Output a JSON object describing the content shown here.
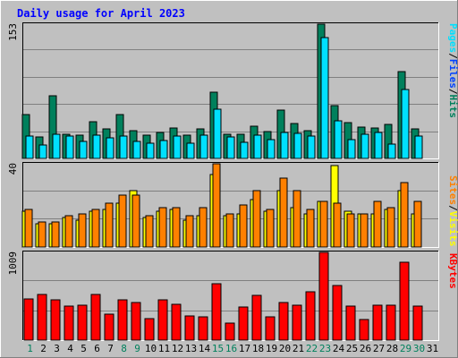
{
  "chart_data": [
    {
      "type": "bar",
      "title": "Daily usage for April 2023",
      "panel": "hits-files-pages",
      "ymax_label": "153",
      "ylim": [
        0,
        153
      ],
      "grid": true,
      "legend": [
        {
          "name": "Hits",
          "color": "#00805c"
        },
        {
          "name": "Files",
          "color": "#0040ff"
        },
        {
          "name": "Pages",
          "color": "#00e0ff"
        }
      ],
      "categories": [
        "1",
        "2",
        "3",
        "4",
        "5",
        "6",
        "7",
        "8",
        "9",
        "10",
        "11",
        "12",
        "13",
        "14",
        "15",
        "16",
        "17",
        "18",
        "19",
        "20",
        "21",
        "22",
        "23",
        "24",
        "25",
        "26",
        "27",
        "28",
        "29",
        "30",
        "31"
      ],
      "series": [
        {
          "name": "Hits",
          "values": [
            50,
            24,
            71,
            28,
            27,
            42,
            34,
            50,
            32,
            27,
            30,
            35,
            27,
            34,
            75,
            28,
            28,
            37,
            31,
            55,
            40,
            32,
            153,
            60,
            41,
            36,
            35,
            39,
            99,
            34,
            0
          ]
        },
        {
          "name": "Files",
          "values": [
            25,
            15,
            28,
            25,
            19,
            27,
            23,
            26,
            19,
            17,
            20,
            26,
            17,
            27,
            56,
            24,
            18,
            27,
            21,
            30,
            29,
            25,
            138,
            43,
            21,
            28,
            30,
            16,
            79,
            26,
            0
          ]
        },
        {
          "name": "Pages",
          "values": [
            25,
            15,
            28,
            25,
            19,
            27,
            23,
            26,
            19,
            17,
            20,
            26,
            17,
            27,
            56,
            24,
            18,
            27,
            21,
            30,
            29,
            25,
            138,
            43,
            21,
            28,
            30,
            16,
            79,
            26,
            0
          ]
        }
      ]
    },
    {
      "type": "bar",
      "panel": "visits-sites",
      "ymax_label": "40",
      "ylim": [
        0,
        40
      ],
      "grid": true,
      "legend": [
        {
          "name": "Visits",
          "color": "#ffff00"
        },
        {
          "name": "Sites",
          "color": "#ff8000"
        }
      ],
      "categories": [
        "1",
        "2",
        "3",
        "4",
        "5",
        "6",
        "7",
        "8",
        "9",
        "10",
        "11",
        "12",
        "13",
        "14",
        "15",
        "16",
        "17",
        "18",
        "19",
        "20",
        "21",
        "22",
        "23",
        "24",
        "25",
        "26",
        "27",
        "28",
        "29",
        "30",
        "31"
      ],
      "series": [
        {
          "name": "Visits",
          "values": [
            17,
            11,
            11,
            14,
            13,
            17,
            18,
            21,
            27,
            14,
            17,
            18,
            13,
            15,
            35,
            15,
            16,
            23,
            17,
            27,
            19,
            16,
            22,
            39,
            17,
            16,
            16,
            18,
            27,
            16,
            0
          ]
        },
        {
          "name": "Sites",
          "values": [
            18,
            12,
            12,
            15,
            16,
            18,
            21,
            25,
            25,
            15,
            19,
            19,
            15,
            19,
            40,
            16,
            20,
            27,
            18,
            33,
            27,
            18,
            22,
            21,
            16,
            16,
            22,
            19,
            31,
            22,
            0
          ]
        }
      ]
    },
    {
      "type": "bar",
      "panel": "kbytes",
      "ymax_label": "1009",
      "ylim": [
        0,
        1009
      ],
      "grid": true,
      "legend": [
        {
          "name": "KBytes",
          "color": "#ff0000"
        }
      ],
      "categories": [
        "1",
        "2",
        "3",
        "4",
        "5",
        "6",
        "7",
        "8",
        "9",
        "10",
        "11",
        "12",
        "13",
        "14",
        "15",
        "16",
        "17",
        "18",
        "19",
        "20",
        "21",
        "22",
        "23",
        "24",
        "25",
        "26",
        "27",
        "28",
        "29",
        "30",
        "31"
      ],
      "series": [
        {
          "name": "KBytes",
          "values": [
            470,
            525,
            460,
            390,
            400,
            520,
            300,
            460,
            430,
            250,
            460,
            410,
            280,
            270,
            650,
            200,
            380,
            510,
            270,
            430,
            400,
            560,
            1009,
            630,
            390,
            240,
            400,
            400,
            900,
            390,
            0
          ]
        }
      ]
    }
  ],
  "x_colors": {
    "weekday": "#000000",
    "weekend": "#00805c"
  },
  "weekend_days": [
    1,
    8,
    9,
    15,
    16,
    22,
    23,
    29,
    30
  ],
  "colors": {
    "frame_bg": "#c0c0c0",
    "plot_bg": "#c0c0c0",
    "title": "#0000ff",
    "grid": "#808080",
    "slash": "#000000"
  }
}
